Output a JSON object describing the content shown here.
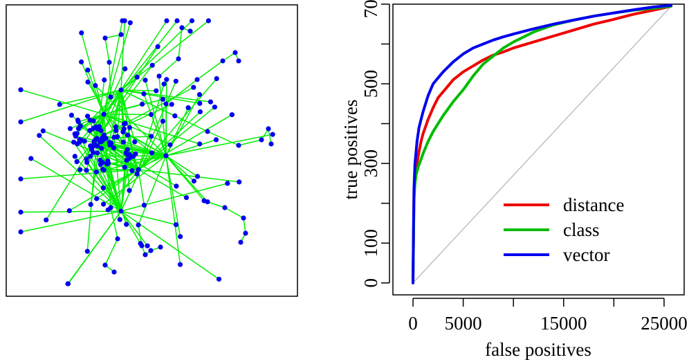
{
  "chart_data": [
    {
      "type": "network",
      "edge_color": "#00ee00",
      "node_color": "#0000ee"
    },
    {
      "type": "line",
      "xlabel": "false positives",
      "ylabel": "true positives",
      "xlim": [
        -2000,
        27000
      ],
      "ylim": [
        -30,
        700
      ],
      "x_ticks": [
        0,
        5000,
        10000,
        15000,
        20000,
        25000
      ],
      "x_tick_labels": [
        "0",
        "5000",
        "",
        "15000",
        "",
        "25000"
      ],
      "y_ticks": [
        0,
        100,
        200,
        300,
        400,
        500,
        600,
        700
      ],
      "y_tick_labels": [
        "0",
        "100",
        "",
        "300",
        "",
        "500",
        "",
        "700"
      ],
      "grid": false,
      "legend_position": "bottom-right",
      "reference_line": {
        "color": "#bebebe",
        "from": [
          0,
          0
        ],
        "to": [
          25700,
          695
        ]
      },
      "series": [
        {
          "name": "distance",
          "color": "#ee0000",
          "x": [
            0,
            100,
            200,
            400,
            600,
            800,
            1000,
            1500,
            2000,
            2500,
            3000,
            4000,
            5000,
            6000,
            7000,
            8000,
            9000,
            10000,
            12000,
            14000,
            16000,
            18000,
            20000,
            22000,
            24000,
            25700
          ],
          "y": [
            0,
            230,
            270,
            300,
            330,
            355,
            375,
            410,
            440,
            465,
            480,
            510,
            530,
            545,
            560,
            572,
            580,
            590,
            605,
            620,
            635,
            650,
            662,
            675,
            685,
            695
          ]
        },
        {
          "name": "class",
          "color": "#00bb00",
          "x": [
            0,
            100,
            200,
            300,
            500,
            800,
            1000,
            1500,
            2000,
            2500,
            3000,
            4000,
            5000,
            6000,
            7000,
            8000,
            9000,
            10000,
            12000,
            14000,
            16000,
            18000,
            20000,
            22000,
            24000,
            25700
          ],
          "y": [
            0,
            210,
            250,
            270,
            290,
            310,
            325,
            355,
            380,
            400,
            420,
            455,
            485,
            520,
            550,
            570,
            590,
            605,
            630,
            648,
            660,
            670,
            678,
            685,
            690,
            695
          ]
        },
        {
          "name": "vector",
          "color": "#0000ee",
          "x": [
            0,
            50,
            100,
            200,
            400,
            600,
            800,
            1000,
            1500,
            2000,
            3000,
            4000,
            5000,
            6000,
            7000,
            8000,
            9000,
            10000,
            12000,
            14000,
            16000,
            18000,
            20000,
            22000,
            24000,
            25700
          ],
          "y": [
            0,
            150,
            240,
            300,
            355,
            390,
            410,
            430,
            470,
            500,
            530,
            555,
            575,
            590,
            600,
            610,
            618,
            625,
            638,
            650,
            660,
            670,
            678,
            686,
            693,
            697
          ]
        }
      ]
    }
  ]
}
